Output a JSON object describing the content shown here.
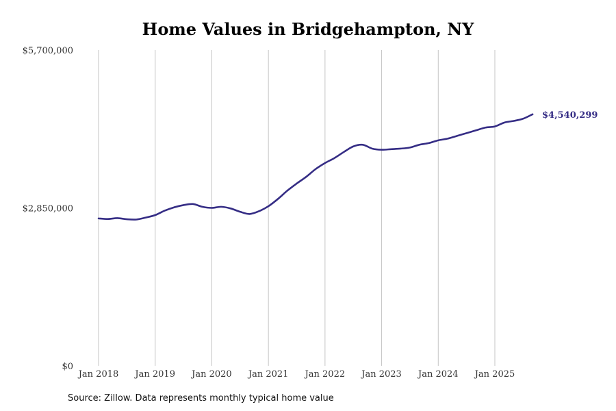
{
  "chart_data": {
    "type": "line",
    "title": "Home Values in Bridgehampton, NY",
    "xlabel": "",
    "ylabel": "",
    "ylim": [
      0,
      5700000
    ],
    "y_ticks": [
      {
        "value": 0,
        "label": "$0"
      },
      {
        "value": 2850000,
        "label": "$2,850,000"
      },
      {
        "value": 5700000,
        "label": "$5,700,000"
      }
    ],
    "x_ticks": [
      {
        "value": 2018.0,
        "label": "Jan 2018"
      },
      {
        "value": 2019.0,
        "label": "Jan 2019"
      },
      {
        "value": 2020.0,
        "label": "Jan 2020"
      },
      {
        "value": 2021.0,
        "label": "Jan 2021"
      },
      {
        "value": 2022.0,
        "label": "Jan 2022"
      },
      {
        "value": 2023.0,
        "label": "Jan 2023"
      },
      {
        "value": 2024.0,
        "label": "Jan 2024"
      },
      {
        "value": 2025.0,
        "label": "Jan 2025"
      }
    ],
    "xlim": [
      2017.8,
      2026.5
    ],
    "grid": "vertical",
    "series": [
      {
        "name": "Typical home value",
        "color": "#352d85",
        "end_label": "$4,540,299",
        "x": [
          2018.0,
          2018.1667,
          2018.3333,
          2018.5,
          2018.6667,
          2018.8333,
          2019.0,
          2019.1667,
          2019.3333,
          2019.5,
          2019.6667,
          2019.8333,
          2020.0,
          2020.1667,
          2020.3333,
          2020.5,
          2020.6667,
          2020.8333,
          2021.0,
          2021.1667,
          2021.3333,
          2021.5,
          2021.6667,
          2021.8333,
          2022.0,
          2022.1667,
          2022.3333,
          2022.5,
          2022.6667,
          2022.8333,
          2023.0,
          2023.1667,
          2023.3333,
          2023.5,
          2023.6667,
          2023.8333,
          2024.0,
          2024.1667,
          2024.3333,
          2024.5,
          2024.6667,
          2024.8333,
          2025.0,
          2025.1667,
          2025.3333,
          2025.5,
          2025.6667
        ],
        "values": [
          2660000,
          2650000,
          2665000,
          2645000,
          2640000,
          2675000,
          2720000,
          2800000,
          2860000,
          2900000,
          2920000,
          2870000,
          2850000,
          2870000,
          2840000,
          2780000,
          2740000,
          2790000,
          2880000,
          3010000,
          3160000,
          3290000,
          3410000,
          3550000,
          3660000,
          3750000,
          3860000,
          3960000,
          3990000,
          3920000,
          3900000,
          3910000,
          3920000,
          3940000,
          3990000,
          4020000,
          4070000,
          4100000,
          4150000,
          4200000,
          4250000,
          4300000,
          4320000,
          4390000,
          4420000,
          4460000,
          4540299
        ]
      }
    ]
  },
  "footer": {
    "source": "Source: Zillow. Data represents monthly typical home value"
  }
}
